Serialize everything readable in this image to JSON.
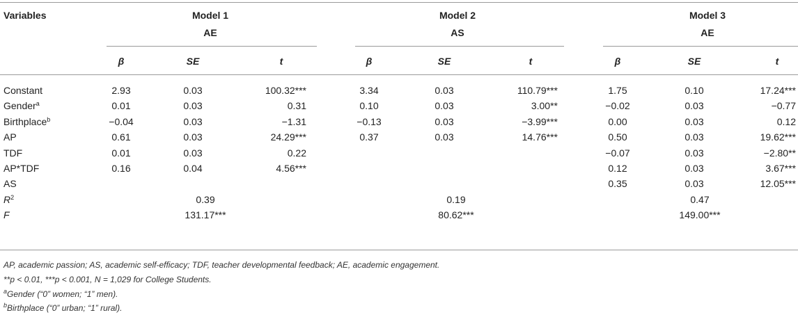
{
  "header": {
    "variables_label": "Variables",
    "models": [
      {
        "name": "Model 1",
        "dv": "AE"
      },
      {
        "name": "Model 2",
        "dv": "AS"
      },
      {
        "name": "Model 3",
        "dv": "AE"
      }
    ],
    "stat_labels": [
      "β",
      "SE",
      "t"
    ]
  },
  "rows": [
    {
      "label": "Constant",
      "sup": "",
      "cells": [
        "2.93",
        "0.03",
        "100.32***",
        "3.34",
        "0.03",
        "110.79***",
        "1.75",
        "0.10",
        "17.24***"
      ]
    },
    {
      "label": "Gender",
      "sup": "a",
      "cells": [
        "0.01",
        "0.03",
        "0.31",
        "0.10",
        "0.03",
        "3.00**",
        "−0.02",
        "0.03",
        "−0.77"
      ]
    },
    {
      "label": "Birthplace",
      "sup": "b",
      "cells": [
        "−0.04",
        "0.03",
        "−1.31",
        "−0.13",
        "0.03",
        "−3.99***",
        "0.00",
        "0.03",
        "0.12"
      ]
    },
    {
      "label": "AP",
      "sup": "",
      "cells": [
        "0.61",
        "0.03",
        "24.29***",
        "0.37",
        "0.03",
        "14.76***",
        "0.50",
        "0.03",
        "19.62***"
      ]
    },
    {
      "label": "TDF",
      "sup": "",
      "cells": [
        "0.01",
        "0.03",
        "0.22",
        "",
        "",
        "",
        "−0.07",
        "0.03",
        "−2.80**"
      ]
    },
    {
      "label": "AP*TDF",
      "sup": "",
      "cells": [
        "0.16",
        "0.04",
        "4.56***",
        "",
        "",
        "",
        "0.12",
        "0.03",
        "3.67***"
      ]
    },
    {
      "label": "AS",
      "sup": "",
      "cells": [
        "",
        "",
        "",
        "",
        "",
        "",
        "0.35",
        "0.03",
        "12.05***"
      ]
    }
  ],
  "summary": [
    {
      "label": "R",
      "sup": "2",
      "values": [
        "0.39",
        "0.19",
        "0.47"
      ]
    },
    {
      "label": "F",
      "sup": "",
      "values": [
        "131.17***",
        "80.62***",
        "149.00***"
      ]
    }
  ],
  "notes": {
    "abbrev": "AP, academic passion; AS, academic self-efficacy; TDF, teacher developmental feedback; AE, academic engagement.",
    "sig_stars": "**",
    "sig_p1": "p",
    "sig_mid1": " < 0.01, ",
    "sig_stars2": "***",
    "sig_p2": "p",
    "sig_mid2": " < 0.001, ",
    "sig_n": "N",
    "sig_tail": " = 1,029 for College Students.",
    "gender_sup": "a",
    "gender": "Gender (“0” women; “1” men).",
    "birth_sup": "b",
    "birth": "Birthplace (“0” urban; “1” rural)."
  }
}
